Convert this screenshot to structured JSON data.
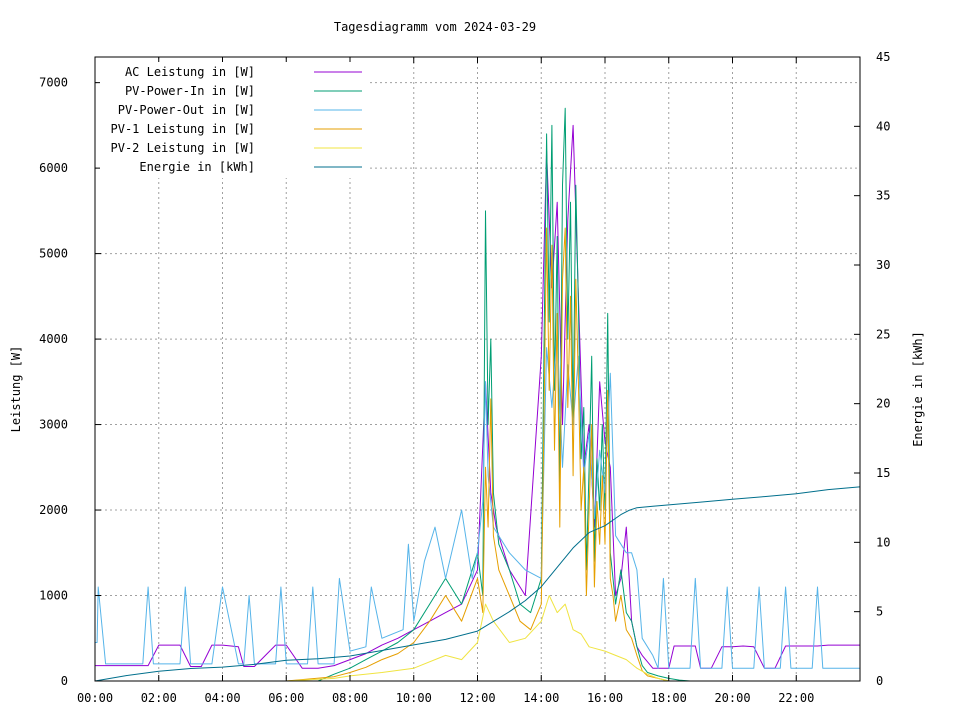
{
  "chart_data": {
    "type": "line",
    "title": "Tagesdiagramm vom 2024-03-29",
    "ylabel": "Leistung [W]",
    "y2label": "Energie in [kWh]",
    "ylim": [
      0,
      7300
    ],
    "y2lim": [
      0,
      45
    ],
    "xlim": [
      "00:00",
      "24:00"
    ],
    "x_ticks": [
      "00:00",
      "02:00",
      "04:00",
      "06:00",
      "08:00",
      "10:00",
      "12:00",
      "14:00",
      "16:00",
      "18:00",
      "20:00",
      "22:00"
    ],
    "y_ticks": [
      "0",
      "1000",
      "2000",
      "3000",
      "4000",
      "5000",
      "6000",
      "7000"
    ],
    "y2_ticks": [
      "0",
      "5",
      "10",
      "15",
      "20",
      "25",
      "30",
      "35",
      "40",
      "45"
    ],
    "grid": true,
    "legend_position": "top-left",
    "series": [
      {
        "name": "AC Leistung in [W]",
        "color": "#9400d3",
        "axis": "y",
        "x": [
          "00:00",
          "00:12",
          "00:15",
          "01:30",
          "01:40",
          "02:00",
          "02:24",
          "02:40",
          "03:00",
          "03:20",
          "03:40",
          "04:00",
          "04:30",
          "04:40",
          "05:00",
          "05:40",
          "05:50",
          "06:00",
          "06:30",
          "06:40",
          "07:00",
          "07:30",
          "08:00",
          "08:30",
          "09:00",
          "09:30",
          "10:00",
          "10:30",
          "11:00",
          "11:30",
          "12:00",
          "12:15",
          "12:25",
          "12:35",
          "13:00",
          "13:30",
          "14:00",
          "14:10",
          "14:20",
          "14:30",
          "14:40",
          "14:50",
          "15:00",
          "15:10",
          "15:20",
          "15:30",
          "15:40",
          "15:50",
          "16:00",
          "16:10",
          "16:20",
          "16:30",
          "16:40",
          "16:50",
          "17:00",
          "17:10",
          "17:30",
          "18:00",
          "18:10",
          "18:20",
          "18:50",
          "19:00",
          "19:20",
          "19:40",
          "20:00",
          "20:20",
          "20:40",
          "21:00",
          "21:20",
          "21:40",
          "22:00",
          "22:40",
          "23:00",
          "23:59"
        ],
        "values": [
          180,
          180,
          180,
          180,
          180,
          420,
          420,
          420,
          170,
          170,
          420,
          420,
          400,
          170,
          170,
          420,
          420,
          420,
          150,
          150,
          150,
          180,
          250,
          320,
          420,
          500,
          600,
          700,
          800,
          900,
          1300,
          3500,
          2200,
          1800,
          1300,
          1000,
          3800,
          6200,
          4600,
          5600,
          3000,
          5400,
          6500,
          4500,
          2500,
          3000,
          1800,
          3500,
          2800,
          2500,
          1000,
          1200,
          1800,
          700,
          400,
          300,
          150,
          150,
          410,
          410,
          410,
          150,
          150,
          400,
          400,
          410,
          400,
          150,
          150,
          410,
          410,
          410,
          420,
          420
        ]
      },
      {
        "name": "PV-Power-In in [W]",
        "color": "#009e73",
        "axis": "y",
        "x": [
          "00:00",
          "02:00",
          "04:00",
          "06:00",
          "07:00",
          "07:30",
          "08:00",
          "08:30",
          "09:00",
          "09:30",
          "10:00",
          "10:30",
          "11:00",
          "11:30",
          "12:00",
          "12:10",
          "12:15",
          "12:20",
          "12:25",
          "12:30",
          "12:40",
          "13:00",
          "13:20",
          "13:40",
          "14:00",
          "14:05",
          "14:10",
          "14:15",
          "14:20",
          "14:25",
          "14:30",
          "14:35",
          "14:40",
          "14:45",
          "14:50",
          "14:55",
          "15:00",
          "15:05",
          "15:10",
          "15:15",
          "15:20",
          "15:25",
          "15:30",
          "15:35",
          "15:40",
          "15:45",
          "15:50",
          "15:55",
          "16:00",
          "16:05",
          "16:10",
          "16:15",
          "16:20",
          "16:30",
          "16:40",
          "16:50",
          "17:00",
          "17:10",
          "17:20",
          "17:40",
          "18:00",
          "18:20",
          "18:40",
          "19:00",
          "20:00",
          "24:00"
        ],
        "values": [
          0,
          0,
          0,
          0,
          0,
          80,
          150,
          250,
          350,
          450,
          600,
          900,
          1200,
          900,
          1500,
          1000,
          5500,
          3000,
          4000,
          2200,
          1600,
          1300,
          900,
          800,
          1200,
          3800,
          6400,
          4200,
          6500,
          3400,
          5200,
          2200,
          5800,
          6700,
          4000,
          5600,
          3000,
          5800,
          4400,
          2600,
          3200,
          1300,
          2500,
          3800,
          1400,
          2600,
          2000,
          3000,
          2000,
          4300,
          1500,
          1200,
          900,
          1300,
          800,
          700,
          400,
          180,
          100,
          60,
          30,
          10,
          0,
          0,
          0,
          0
        ]
      },
      {
        "name": "PV-Power-Out in [W]",
        "color": "#56b4e9",
        "axis": "y",
        "x": [
          "00:00",
          "00:04",
          "00:06",
          "00:20",
          "01:30",
          "01:40",
          "01:50",
          "02:00",
          "02:40",
          "02:50",
          "03:00",
          "03:40",
          "04:00",
          "04:30",
          "04:40",
          "04:50",
          "05:00",
          "05:40",
          "05:50",
          "06:00",
          "06:30",
          "06:40",
          "06:50",
          "07:00",
          "07:20",
          "07:30",
          "07:40",
          "08:00",
          "08:30",
          "08:40",
          "09:00",
          "09:40",
          "09:50",
          "10:00",
          "10:20",
          "10:40",
          "11:00",
          "11:30",
          "11:40",
          "11:50",
          "12:00",
          "12:10",
          "12:15",
          "12:20",
          "12:30",
          "13:00",
          "13:30",
          "14:00",
          "14:10",
          "14:20",
          "14:30",
          "14:40",
          "14:50",
          "15:00",
          "15:10",
          "15:20",
          "15:30",
          "15:40",
          "15:50",
          "16:00",
          "16:10",
          "16:20",
          "16:30",
          "16:40",
          "16:50",
          "17:00",
          "17:10",
          "17:30",
          "17:40",
          "17:50",
          "18:00",
          "18:30",
          "18:40",
          "18:50",
          "19:00",
          "19:30",
          "19:40",
          "19:50",
          "20:00",
          "20:30",
          "20:40",
          "20:50",
          "21:00",
          "21:30",
          "21:40",
          "21:50",
          "22:00",
          "22:30",
          "22:40",
          "22:50",
          "23:00",
          "23:59"
        ],
        "values": [
          450,
          450,
          1100,
          200,
          200,
          1100,
          200,
          200,
          200,
          1100,
          200,
          200,
          1100,
          200,
          200,
          1000,
          200,
          200,
          1100,
          200,
          200,
          200,
          1100,
          200,
          200,
          200,
          1200,
          350,
          400,
          1100,
          500,
          600,
          1600,
          700,
          1400,
          1800,
          1200,
          2000,
          1600,
          1200,
          1500,
          2100,
          3500,
          2400,
          1800,
          1500,
          1300,
          1200,
          3900,
          3200,
          4100,
          2500,
          3700,
          3000,
          3800,
          2400,
          2900,
          1900,
          2700,
          2200,
          3600,
          1700,
          1600,
          1500,
          1500,
          1300,
          500,
          300,
          150,
          1200,
          150,
          150,
          150,
          1200,
          150,
          150,
          150,
          1100,
          150,
          150,
          150,
          1100,
          150,
          150,
          1100,
          150,
          150,
          150,
          1100,
          150,
          150,
          150
        ]
      },
      {
        "name": "PV-1 Leistung in [W]",
        "color": "#e69f00",
        "axis": "y",
        "x": [
          "00:00",
          "06:00",
          "07:30",
          "08:00",
          "08:30",
          "09:00",
          "09:30",
          "10:00",
          "10:30",
          "11:00",
          "11:30",
          "12:00",
          "12:10",
          "12:15",
          "12:20",
          "12:25",
          "12:30",
          "12:40",
          "13:00",
          "13:20",
          "13:40",
          "14:00",
          "14:05",
          "14:10",
          "14:15",
          "14:20",
          "14:25",
          "14:30",
          "14:35",
          "14:40",
          "14:45",
          "14:50",
          "14:55",
          "15:00",
          "15:05",
          "15:10",
          "15:15",
          "15:20",
          "15:25",
          "15:30",
          "15:35",
          "15:40",
          "15:45",
          "15:50",
          "15:55",
          "16:00",
          "16:05",
          "16:10",
          "16:15",
          "16:20",
          "16:30",
          "16:40",
          "16:50",
          "17:00",
          "17:10",
          "17:20",
          "17:40",
          "18:00",
          "24:00"
        ],
        "values": [
          0,
          0,
          50,
          100,
          160,
          250,
          320,
          450,
          700,
          1000,
          700,
          1200,
          800,
          2500,
          1800,
          3300,
          1700,
          1300,
          1000,
          700,
          600,
          900,
          3000,
          5300,
          3400,
          5100,
          2700,
          4300,
          1800,
          4700,
          5300,
          3200,
          4500,
          2400,
          4700,
          3500,
          2000,
          2500,
          1000,
          2000,
          3000,
          1100,
          2100,
          1600,
          2400,
          1600,
          3400,
          1200,
          1000,
          700,
          1000,
          600,
          500,
          300,
          120,
          60,
          30,
          0,
          0
        ]
      },
      {
        "name": "PV-2 Leistung in [W]",
        "color": "#f0e442",
        "axis": "y",
        "x": [
          "00:00",
          "06:00",
          "07:30",
          "08:00",
          "09:00",
          "10:00",
          "11:00",
          "11:30",
          "12:00",
          "12:15",
          "12:30",
          "13:00",
          "13:30",
          "14:00",
          "14:15",
          "14:30",
          "14:45",
          "15:00",
          "15:15",
          "15:30",
          "16:00",
          "16:20",
          "16:40",
          "17:00",
          "17:20",
          "17:40",
          "18:00",
          "24:00"
        ],
        "values": [
          0,
          0,
          30,
          60,
          100,
          150,
          300,
          250,
          450,
          900,
          700,
          450,
          500,
          700,
          1000,
          800,
          900,
          600,
          550,
          400,
          350,
          300,
          250,
          150,
          80,
          30,
          0,
          0
        ]
      },
      {
        "name": "Energie in [kWh]",
        "color": "#006f8c",
        "axis": "y2",
        "x": [
          "00:00",
          "01:00",
          "02:00",
          "03:00",
          "04:00",
          "05:00",
          "06:00",
          "07:00",
          "08:00",
          "09:00",
          "10:00",
          "11:00",
          "12:00",
          "12:30",
          "13:00",
          "13:30",
          "14:00",
          "14:30",
          "15:00",
          "15:30",
          "16:00",
          "16:30",
          "16:45",
          "17:00",
          "17:30",
          "18:00",
          "19:00",
          "20:00",
          "21:00",
          "22:00",
          "23:00",
          "23:59"
        ],
        "values": [
          0,
          0.4,
          0.7,
          0.9,
          1.0,
          1.2,
          1.5,
          1.6,
          1.8,
          2.2,
          2.6,
          3.0,
          3.6,
          4.3,
          5.0,
          5.8,
          6.8,
          8.2,
          9.6,
          10.7,
          11.2,
          12.0,
          12.3,
          12.5,
          12.6,
          12.7,
          12.9,
          13.1,
          13.3,
          13.5,
          13.8,
          14.0
        ]
      }
    ]
  }
}
